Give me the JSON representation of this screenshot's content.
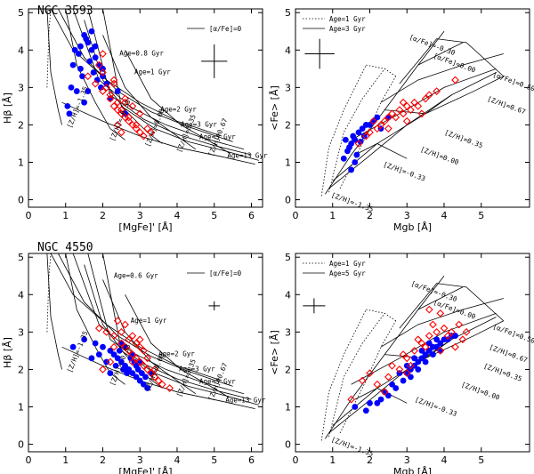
{
  "chart_data": [
    {
      "id": "p1",
      "type": "scatter",
      "title": "NGC 3593",
      "xlabel": "[MgFe]' [Å]",
      "ylabel": "Hβ [Å]",
      "xlim": [
        0,
        6.3
      ],
      "ylim": [
        -0.2,
        5.1
      ],
      "xticks": [
        "0",
        "1",
        "2",
        "3",
        "4",
        "5",
        "6"
      ],
      "yticks": [
        "0",
        "1",
        "2",
        "3",
        "4",
        "5"
      ],
      "legend": [
        "[α/Fe]=0"
      ],
      "grid_labels": [
        {
          "text": "Age=0.8 Gyr",
          "x": 2.45,
          "y": 3.85
        },
        {
          "text": "Age=1 Gyr",
          "x": 2.85,
          "y": 3.35
        },
        {
          "text": "Age=2 Gyr",
          "x": 3.55,
          "y": 2.35
        },
        {
          "text": "Age=3 Gyr",
          "x": 4.1,
          "y": 1.95
        },
        {
          "text": "Age=5 Gyr",
          "x": 4.6,
          "y": 1.62
        },
        {
          "text": "Age=13 Gyr",
          "x": 5.35,
          "y": 1.12
        },
        {
          "text": "[Z/H]=-1.35",
          "x": 1.15,
          "y": 1.9,
          "rot": 68
        },
        {
          "text": "[Z/H]=-0.33",
          "x": 2.3,
          "y": 1.55,
          "rot": 68
        },
        {
          "text": "[Z/H]=0.00",
          "x": 3.25,
          "y": 1.4,
          "rot": 68
        },
        {
          "text": "[Z/H]=0.35",
          "x": 4.1,
          "y": 1.25,
          "rot": 68
        },
        {
          "text": "[Z/H]=0.67",
          "x": 4.95,
          "y": 1.15,
          "rot": 68
        }
      ],
      "series": [
        {
          "name": "blue",
          "color": "#0000ff",
          "marker": "circle",
          "x": [
            1.1,
            1.3,
            1.4,
            1.5,
            1.6,
            1.7,
            1.8,
            1.9,
            2.0,
            2.1,
            1.2,
            1.35,
            1.55,
            1.65,
            1.75,
            1.85,
            1.95,
            2.2,
            1.45,
            1.5,
            1.6,
            1.25,
            1.15,
            1.05,
            1.4,
            1.7,
            1.8,
            2.0,
            2.4,
            2.6
          ],
          "y": [
            2.3,
            2.9,
            3.5,
            4.4,
            4.2,
            4.0,
            3.8,
            3.6,
            3.3,
            3.1,
            3.6,
            3.9,
            4.3,
            3.7,
            3.4,
            3.2,
            3.0,
            2.7,
            3.3,
            2.6,
            2.9,
            4.0,
            3.0,
            2.5,
            4.1,
            4.5,
            4.1,
            3.5,
            2.9,
            2.3
          ]
        },
        {
          "name": "red",
          "color": "#ff0000",
          "marker": "diamond",
          "x": [
            1.6,
            1.8,
            2.0,
            2.2,
            2.3,
            2.4,
            2.5,
            2.6,
            2.7,
            2.8,
            2.9,
            3.0,
            3.1,
            2.1,
            2.2,
            2.4,
            2.5,
            2.7,
            2.9,
            3.0,
            3.2,
            1.9,
            2.0,
            2.3,
            2.6,
            2.8,
            3.3,
            2.5,
            2.4,
            2.6,
            2.0,
            2.3
          ],
          "y": [
            3.3,
            3.1,
            2.9,
            2.7,
            2.5,
            2.4,
            2.3,
            2.2,
            2.1,
            2.0,
            1.9,
            1.8,
            1.7,
            3.0,
            2.8,
            2.6,
            2.4,
            2.2,
            2.0,
            2.3,
            1.9,
            3.6,
            3.4,
            3.1,
            2.7,
            2.5,
            1.8,
            1.8,
            2.0,
            2.6,
            3.9,
            3.2
          ]
        }
      ],
      "error_bar": {
        "x": 5.0,
        "y": 3.7,
        "dx": 0.35,
        "dy": 0.45
      }
    },
    {
      "id": "p2",
      "type": "scatter",
      "title": "",
      "xlabel": "Mgb [Å]",
      "ylabel": "<Fe> [Å]",
      "xlim": [
        0,
        6.3
      ],
      "ylim": [
        -0.2,
        5.1
      ],
      "xticks": [
        "0",
        "1",
        "2",
        "3",
        "4",
        "5"
      ],
      "yticks": [
        "0",
        "1",
        "2",
        "3",
        "4",
        "5"
      ],
      "legend": [
        "Age=1 Gyr",
        "Age=3 Gyr"
      ],
      "grid_labels": [
        {
          "text": "[α/Fe]=-0.30",
          "x": 3.05,
          "y": 4.3,
          "rot": -20
        },
        {
          "text": "[α/Fe]=0.00",
          "x": 3.7,
          "y": 3.8,
          "rot": -20
        },
        {
          "text": "[α/Fe]=0.50",
          "x": 5.3,
          "y": 3.3,
          "rot": -20
        },
        {
          "text": "[Z/H]=0.67",
          "x": 5.15,
          "y": 2.65,
          "rot": -20
        },
        {
          "text": "[Z/H]=0.35",
          "x": 4.0,
          "y": 1.75,
          "rot": -20
        },
        {
          "text": "[Z/H]=0.00",
          "x": 3.35,
          "y": 1.3,
          "rot": -20
        },
        {
          "text": "[Z/H]=-0.33",
          "x": 2.35,
          "y": 0.9,
          "rot": -20
        },
        {
          "text": "[Z/H]=-1.35",
          "x": 0.95,
          "y": 0.08,
          "rot": -20
        }
      ],
      "series": [
        {
          "name": "blue",
          "color": "#0000ff",
          "marker": "circle",
          "x": [
            1.3,
            1.4,
            1.5,
            1.55,
            1.6,
            1.7,
            1.8,
            1.85,
            1.9,
            2.0,
            2.1,
            2.2,
            1.45,
            1.35,
            1.65,
            1.75,
            2.5,
            2.3,
            1.5,
            1.6
          ],
          "y": [
            1.1,
            1.3,
            1.5,
            1.7,
            1.6,
            1.8,
            1.9,
            1.7,
            2.0,
            2.0,
            2.1,
            2.2,
            1.4,
            1.6,
            1.2,
            1.55,
            2.2,
            1.9,
            0.8,
            1.0
          ]
        },
        {
          "name": "red",
          "color": "#ff0000",
          "marker": "diamond",
          "x": [
            1.7,
            1.9,
            2.0,
            2.2,
            2.3,
            2.4,
            2.5,
            2.6,
            2.7,
            2.8,
            2.9,
            3.0,
            3.1,
            3.2,
            3.3,
            3.5,
            3.6,
            3.8,
            4.3,
            2.1,
            2.5,
            2.9,
            3.0,
            3.4
          ],
          "y": [
            1.5,
            1.7,
            1.8,
            1.9,
            2.0,
            2.1,
            2.2,
            2.3,
            2.2,
            2.4,
            2.3,
            2.5,
            2.4,
            2.6,
            2.5,
            2.7,
            2.8,
            2.9,
            3.2,
            2.1,
            1.9,
            2.6,
            2.1,
            2.3
          ]
        }
      ],
      "error_bar": {
        "x": 0.65,
        "y": 3.9,
        "dx": 0.4,
        "dy": 0.4
      }
    },
    {
      "id": "p3",
      "type": "scatter",
      "title": "NGC 4550",
      "xlabel": "[MgFe]' [Å]",
      "ylabel": "Hβ [Å]",
      "xlim": [
        0,
        6.3
      ],
      "ylim": [
        -0.2,
        5.1
      ],
      "xticks": [
        "0",
        "1",
        "2",
        "3",
        "4",
        "5",
        "6"
      ],
      "yticks": [
        "0",
        "1",
        "2",
        "3",
        "4",
        "5"
      ],
      "legend": [
        "[α/Fe]=0"
      ],
      "grid_labels": [
        {
          "text": "Age=0.6 Gyr",
          "x": 2.3,
          "y": 4.45
        },
        {
          "text": "Age=1 Gyr",
          "x": 2.75,
          "y": 3.25
        },
        {
          "text": "Age=2 Gyr",
          "x": 3.5,
          "y": 2.35
        },
        {
          "text": "Age=3 Gyr",
          "x": 4.05,
          "y": 1.95
        },
        {
          "text": "Age=5 Gyr",
          "x": 4.6,
          "y": 1.62
        },
        {
          "text": "Age=13 Gyr",
          "x": 5.3,
          "y": 1.12
        },
        {
          "text": "[Z/H]=-1.35",
          "x": 1.15,
          "y": 1.9,
          "rot": 68
        },
        {
          "text": "[Z/H]=-0.33",
          "x": 2.3,
          "y": 1.55,
          "rot": 68
        },
        {
          "text": "[Z/H]=0.00",
          "x": 3.25,
          "y": 1.4,
          "rot": 68
        },
        {
          "text": "[Z/H]=0.35",
          "x": 4.1,
          "y": 1.25,
          "rot": 68
        },
        {
          "text": "[Z/H]=0.67",
          "x": 4.95,
          "y": 1.15,
          "rot": 68
        }
      ],
      "series": [
        {
          "name": "blue",
          "color": "#0000ff",
          "marker": "circle",
          "x": [
            1.2,
            1.5,
            1.8,
            2.0,
            2.2,
            2.3,
            2.4,
            2.5,
            2.6,
            2.7,
            2.8,
            2.9,
            3.0,
            3.1,
            3.2,
            2.1,
            2.35,
            2.55,
            2.65,
            2.75,
            2.85,
            2.95,
            3.05,
            3.15,
            2.45,
            1.9,
            2.6,
            2.8,
            3.0,
            2.2,
            1.7,
            2.9,
            3.3,
            2.5
          ],
          "y": [
            2.6,
            2.8,
            2.7,
            2.6,
            2.5,
            2.4,
            2.3,
            2.2,
            2.1,
            2.0,
            1.9,
            1.8,
            1.7,
            1.6,
            1.5,
            2.2,
            2.1,
            2.0,
            1.9,
            2.3,
            2.2,
            2.0,
            1.9,
            1.8,
            2.5,
            2.4,
            2.6,
            2.4,
            2.2,
            1.9,
            2.3,
            2.1,
            1.9,
            2.7
          ]
        },
        {
          "name": "red",
          "color": "#ff0000",
          "marker": "diamond",
          "x": [
            1.9,
            2.1,
            2.3,
            2.5,
            2.6,
            2.7,
            2.8,
            2.9,
            3.0,
            3.1,
            3.2,
            3.3,
            3.4,
            3.5,
            2.4,
            2.6,
            2.8,
            3.0,
            3.2,
            2.2,
            2.0,
            3.6,
            3.8,
            2.7,
            2.9,
            3.1,
            2.5,
            2.3,
            3.4,
            3.0,
            2.8
          ],
          "y": [
            3.1,
            3.0,
            2.9,
            2.7,
            2.6,
            2.5,
            2.4,
            2.3,
            2.2,
            2.1,
            2.0,
            1.9,
            1.8,
            1.7,
            3.3,
            3.2,
            2.9,
            2.6,
            2.3,
            2.2,
            2.0,
            1.6,
            1.5,
            2.8,
            2.7,
            2.5,
            3.0,
            2.6,
            2.0,
            2.8,
            2.2
          ]
        }
      ],
      "error_bar": {
        "x": 5.0,
        "y": 3.7,
        "dx": 0.15,
        "dy": 0.12
      }
    },
    {
      "id": "p4",
      "type": "scatter",
      "title": "",
      "xlabel": "Mgb [Å]",
      "ylabel": "<Fe> [Å]",
      "xlim": [
        0,
        6.3
      ],
      "ylim": [
        -0.2,
        5.1
      ],
      "xticks": [
        "0",
        "1",
        "2",
        "3",
        "4",
        "5"
      ],
      "yticks": [
        "0",
        "1",
        "2",
        "3",
        "4",
        "5"
      ],
      "legend": [
        "Age=1 Gyr",
        "Age=5 Gyr"
      ],
      "grid_labels": [
        {
          "text": "[α/Fe]=-0.30",
          "x": 3.1,
          "y": 4.25,
          "rot": -20
        },
        {
          "text": "[α/Fe]=0.00",
          "x": 3.7,
          "y": 3.75,
          "rot": -20
        },
        {
          "text": "[α/Fe]=0.50",
          "x": 5.3,
          "y": 3.1,
          "rot": -20
        },
        {
          "text": "[Z/H]=0.67",
          "x": 5.2,
          "y": 2.55,
          "rot": -20
        },
        {
          "text": "[Z/H]=0.35",
          "x": 5.05,
          "y": 2.05,
          "rot": -20
        },
        {
          "text": "[Z/H]=0.00",
          "x": 4.45,
          "y": 1.55,
          "rot": -20
        },
        {
          "text": "[Z/H]=-0.33",
          "x": 3.2,
          "y": 1.15,
          "rot": -20
        },
        {
          "text": "[Z/H]=-1.35",
          "x": 0.95,
          "y": 0.08,
          "rot": -20
        }
      ],
      "series": [
        {
          "name": "blue",
          "color": "#0000ff",
          "marker": "circle",
          "x": [
            2.2,
            2.5,
            2.7,
            2.9,
            3.0,
            3.1,
            3.2,
            3.3,
            3.4,
            3.5,
            3.6,
            3.7,
            3.8,
            3.9,
            4.0,
            4.1,
            4.2,
            2.8,
            3.0,
            3.2,
            3.4,
            3.6,
            3.8,
            2.6,
            1.9,
            2.3,
            3.5,
            3.7,
            4.3,
            3.1,
            2.4,
            3.3,
            1.6,
            2.0,
            3.9
          ],
          "y": [
            1.1,
            1.3,
            1.5,
            1.7,
            1.9,
            2.0,
            2.1,
            2.2,
            2.3,
            2.4,
            2.5,
            2.6,
            2.6,
            2.7,
            2.8,
            2.8,
            2.9,
            1.9,
            2.1,
            2.3,
            2.5,
            2.7,
            2.8,
            1.6,
            0.9,
            1.2,
            2.2,
            2.4,
            2.9,
            1.8,
            1.4,
            2.0,
            1.0,
            1.1,
            2.5
          ]
        },
        {
          "name": "red",
          "color": "#ff0000",
          "marker": "diamond",
          "x": [
            1.8,
            2.2,
            2.5,
            2.8,
            3.0,
            3.2,
            3.4,
            3.6,
            3.8,
            4.0,
            4.2,
            4.4,
            2.9,
            3.3,
            3.7,
            4.1,
            4.5,
            3.1,
            3.5,
            3.9,
            4.3,
            3.0,
            2.6,
            2.4,
            4.6,
            3.6,
            1.5,
            2.0,
            3.9
          ],
          "y": [
            1.7,
            1.6,
            1.8,
            2.0,
            2.3,
            2.5,
            2.7,
            2.9,
            3.0,
            3.1,
            3.0,
            3.2,
            2.4,
            2.8,
            3.2,
            2.9,
            2.8,
            2.1,
            2.6,
            3.5,
            2.6,
            1.9,
            2.1,
            1.4,
            3.0,
            3.6,
            1.2,
            1.9,
            2.5
          ]
        }
      ],
      "error_bar": {
        "x": 0.5,
        "y": 3.7,
        "dx": 0.3,
        "dy": 0.2
      }
    }
  ]
}
